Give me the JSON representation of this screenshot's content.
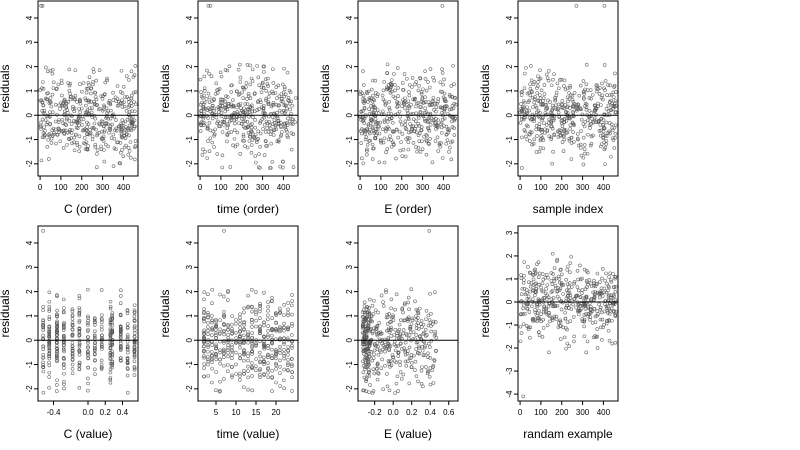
{
  "figure": {
    "panel_count": 8
  },
  "chart_data": [
    {
      "type": "scatter",
      "xlabel": "C (order)",
      "ylabel": "residuals",
      "x_ticks": [
        0,
        100,
        200,
        300,
        400
      ],
      "xlim": [
        -10,
        470
      ],
      "y_ticks": [
        -2,
        -1,
        0,
        1,
        2,
        3,
        4
      ],
      "ylim": [
        -2.5,
        4.7
      ],
      "y_tick_labels_rotated": true,
      "reference_line_y": 0,
      "marker": "open-circle",
      "point_color": "#555555",
      "n_points": 460,
      "distribution": "ordered",
      "outliers": [
        [
          5,
          4.5
        ],
        [
          12,
          4.5
        ]
      ],
      "seed": 11
    },
    {
      "type": "scatter",
      "xlabel": "time (order)",
      "ylabel": "residuals",
      "x_ticks": [
        0,
        100,
        200,
        300,
        400
      ],
      "xlim": [
        -10,
        470
      ],
      "y_ticks": [
        -2,
        -1,
        0,
        1,
        2,
        3,
        4
      ],
      "ylim": [
        -2.5,
        4.7
      ],
      "y_tick_labels_rotated": true,
      "reference_line_y": 0,
      "marker": "open-circle",
      "point_color": "#555555",
      "n_points": 460,
      "distribution": "ordered",
      "outliers": [
        [
          40,
          4.5
        ],
        [
          50,
          4.5
        ]
      ],
      "seed": 23
    },
    {
      "type": "scatter",
      "xlabel": "E (order)",
      "ylabel": "residuals",
      "x_ticks": [
        0,
        100,
        200,
        300,
        400
      ],
      "xlim": [
        -10,
        470
      ],
      "y_ticks": [
        -2,
        -1,
        0,
        1,
        2,
        3,
        4
      ],
      "ylim": [
        -2.5,
        4.7
      ],
      "y_tick_labels_rotated": true,
      "reference_line_y": 0,
      "marker": "open-circle",
      "point_color": "#555555",
      "n_points": 460,
      "distribution": "ordered",
      "outliers": [
        [
          395,
          4.5
        ]
      ],
      "seed": 37
    },
    {
      "type": "scatter",
      "xlabel": "sample index",
      "ylabel": "residuals",
      "x_ticks": [
        0,
        100,
        200,
        300,
        400
      ],
      "xlim": [
        -10,
        470
      ],
      "y_ticks": [
        -2,
        -1,
        0,
        1,
        2,
        3,
        4
      ],
      "ylim": [
        -2.5,
        4.7
      ],
      "y_tick_labels_rotated": true,
      "reference_line_y": 0,
      "marker": "open-circle",
      "point_color": "#555555",
      "n_points": 460,
      "distribution": "ordered",
      "outliers": [
        [
          270,
          4.5
        ],
        [
          405,
          4.5
        ]
      ],
      "seed": 41
    },
    {
      "type": "scatter",
      "xlabel": "C (value)",
      "ylabel": "residuals",
      "x_ticks": [
        -0.4,
        0.0,
        0.2,
        0.4
      ],
      "x_tick_labels": [
        "-0.4",
        "0.0",
        "0.2",
        "0.4"
      ],
      "xlim": [
        -0.58,
        0.58
      ],
      "y_ticks": [
        -2,
        -1,
        0,
        1,
        2,
        3,
        4
      ],
      "ylim": [
        -2.5,
        4.7
      ],
      "y_tick_labels_rotated": true,
      "reference_line_y": 0,
      "marker": "open-circle",
      "point_color": "#555555",
      "n_points": 460,
      "distribution": "columns",
      "columns": [
        -0.52,
        -0.45,
        -0.36,
        -0.28,
        -0.18,
        -0.1,
        0.0,
        0.08,
        0.16,
        0.26,
        0.28,
        0.38,
        0.46,
        0.54
      ],
      "outliers": [
        [
          -0.52,
          4.5
        ]
      ],
      "seed": 53
    },
    {
      "type": "scatter",
      "xlabel": "time (value)",
      "ylabel": "residuals",
      "x_ticks": [
        5,
        10,
        15,
        20
      ],
      "xlim": [
        0.5,
        25.5
      ],
      "y_ticks": [
        -2,
        -1,
        0,
        1,
        2,
        3,
        4
      ],
      "ylim": [
        -2.5,
        4.7
      ],
      "y_tick_labels_rotated": true,
      "reference_line_y": 0,
      "marker": "open-circle",
      "point_color": "#555555",
      "n_points": 460,
      "distribution": "columns",
      "columns": [
        2,
        3,
        4,
        5,
        6,
        7,
        8,
        9,
        10,
        11,
        12,
        13,
        14,
        15,
        16,
        17,
        18,
        19,
        20,
        21,
        22,
        23,
        24
      ],
      "outliers": [
        [
          7,
          4.5
        ]
      ],
      "seed": 67
    },
    {
      "type": "scatter",
      "xlabel": "E (value)",
      "ylabel": "residuals",
      "x_ticks": [
        -0.2,
        0.0,
        0.2,
        0.4,
        0.6
      ],
      "x_tick_labels": [
        "-0.2",
        "0.0",
        "0.2",
        "0.4",
        "0.6"
      ],
      "xlim": [
        -0.38,
        0.7
      ],
      "y_ticks": [
        -2,
        -1,
        0,
        1,
        2,
        3,
        4
      ],
      "ylim": [
        -2.5,
        4.7
      ],
      "y_tick_labels_rotated": true,
      "reference_line_y": 0,
      "marker": "open-circle",
      "point_color": "#555555",
      "n_points": 460,
      "distribution": "skewed",
      "outliers": [
        [
          0.39,
          4.5
        ]
      ],
      "seed": 79
    },
    {
      "type": "scatter",
      "xlabel": "randam example",
      "ylabel": "residuals",
      "x_ticks": [
        0,
        100,
        200,
        300,
        400
      ],
      "xlim": [
        -10,
        470
      ],
      "y_ticks": [
        -4,
        -3,
        -2,
        -1,
        0,
        1,
        2,
        3
      ],
      "ylim": [
        -4.3,
        3.3
      ],
      "y_tick_labels_rotated": true,
      "reference_line_y": 0,
      "marker": "open-circle",
      "point_color": "#555555",
      "n_points": 460,
      "distribution": "ordered",
      "outliers": [
        [
          15,
          -4.1
        ]
      ],
      "seed": 97
    }
  ]
}
